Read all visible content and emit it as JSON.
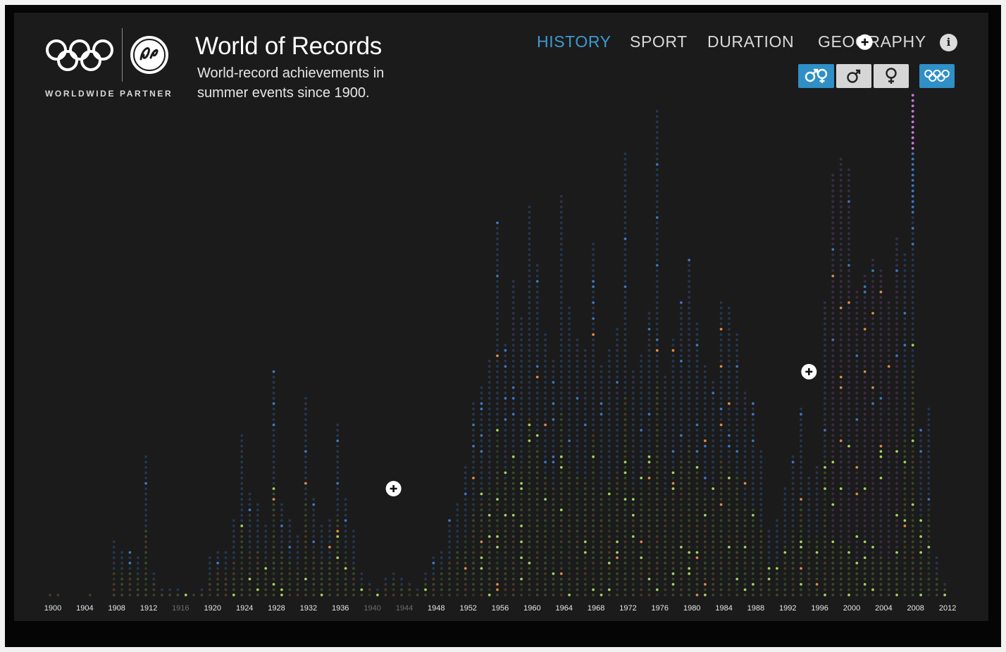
{
  "app": {
    "title": "World of Records",
    "subtitle": "World-record achievements in summer events since 1900.",
    "partner_label": "WORLDWIDE PARTNER"
  },
  "nav": {
    "tabs": [
      {
        "label": "HISTORY",
        "active": true
      },
      {
        "label": "SPORT",
        "active": false
      },
      {
        "label": "DURATION",
        "active": false
      },
      {
        "label": "GEOGRAPHY",
        "active": false
      }
    ],
    "info_label": "i"
  },
  "filters": [
    {
      "name": "both-genders",
      "icon": "male-female-icon",
      "active": true
    },
    {
      "name": "male",
      "icon": "male-icon",
      "active": false
    },
    {
      "name": "female",
      "icon": "female-icon",
      "active": false
    },
    {
      "name": "olympic",
      "icon": "olympic-rings-icon",
      "active": true
    }
  ],
  "colors": {
    "background": "#1b1b1b",
    "accent": "#3d9ad1",
    "active_filter": "#2f8fc6",
    "inactive_filter": "#d6d6d6"
  },
  "chart_data": {
    "type": "scatter",
    "x_axis_type": "year",
    "tick_labels": [
      {
        "year": 1900,
        "label": "1900",
        "dim": false
      },
      {
        "year": 1904,
        "label": "1904",
        "dim": false
      },
      {
        "year": 1908,
        "label": "1908",
        "dim": false
      },
      {
        "year": 1912,
        "label": "1912",
        "dim": false
      },
      {
        "year": 1916,
        "label": "1916",
        "dim": true
      },
      {
        "year": 1920,
        "label": "1920",
        "dim": false
      },
      {
        "year": 1924,
        "label": "1924",
        "dim": false
      },
      {
        "year": 1928,
        "label": "1928",
        "dim": false
      },
      {
        "year": 1932,
        "label": "1932",
        "dim": false
      },
      {
        "year": 1936,
        "label": "1936",
        "dim": false
      },
      {
        "year": 1940,
        "label": "1940",
        "dim": true
      },
      {
        "year": 1944,
        "label": "1944",
        "dim": true
      },
      {
        "year": 1948,
        "label": "1948",
        "dim": false
      },
      {
        "year": 1952,
        "label": "1952",
        "dim": false
      },
      {
        "year": 1956,
        "label": "1956",
        "dim": false
      },
      {
        "year": 1960,
        "label": "1960",
        "dim": false
      },
      {
        "year": 1964,
        "label": "1964",
        "dim": false
      },
      {
        "year": 1968,
        "label": "1968",
        "dim": false
      },
      {
        "year": 1972,
        "label": "1972",
        "dim": false
      },
      {
        "year": 1976,
        "label": "1976",
        "dim": false
      },
      {
        "year": 1980,
        "label": "1980",
        "dim": false
      },
      {
        "year": 1984,
        "label": "1984",
        "dim": false
      },
      {
        "year": 1988,
        "label": "1988",
        "dim": false
      },
      {
        "year": 1992,
        "label": "1992",
        "dim": false
      },
      {
        "year": 1996,
        "label": "1996",
        "dim": false
      },
      {
        "year": 2000,
        "label": "2000",
        "dim": false
      },
      {
        "year": 2004,
        "label": "2004",
        "dim": false
      },
      {
        "year": 2008,
        "label": "2008",
        "dim": false
      },
      {
        "year": 2012,
        "label": "2012",
        "dim": false
      }
    ],
    "record_counts": {
      "years": [
        1900,
        1901,
        1902,
        1903,
        1904,
        1905,
        1906,
        1907,
        1908,
        1909,
        1910,
        1911,
        1912,
        1913,
        1914,
        1915,
        1916,
        1917,
        1918,
        1919,
        1920,
        1921,
        1922,
        1923,
        1924,
        1925,
        1926,
        1927,
        1928,
        1929,
        1930,
        1931,
        1932,
        1933,
        1934,
        1935,
        1936,
        1937,
        1938,
        1939,
        1940,
        1941,
        1942,
        1943,
        1944,
        1945,
        1946,
        1947,
        1948,
        1949,
        1950,
        1951,
        1952,
        1953,
        1954,
        1955,
        1956,
        1957,
        1958,
        1959,
        1960,
        1961,
        1962,
        1963,
        1964,
        1965,
        1966,
        1967,
        1968,
        1969,
        1970,
        1971,
        1972,
        1973,
        1974,
        1975,
        1976,
        1977,
        1978,
        1979,
        1980,
        1981,
        1982,
        1983,
        1984,
        1985,
        1986,
        1987,
        1988,
        1989,
        1990,
        1991,
        1992,
        1993,
        1994,
        1995,
        1996,
        1997,
        1998,
        1999,
        2000,
        2001,
        2002,
        2003,
        2004,
        2005,
        2006,
        2007,
        2008,
        2009,
        2010,
        2011,
        2012
      ],
      "counts": [
        1,
        1,
        0,
        0,
        0,
        1,
        0,
        0,
        11,
        9,
        9,
        8,
        27,
        5,
        2,
        2,
        2,
        1,
        1,
        2,
        8,
        9,
        9,
        15,
        31,
        20,
        18,
        14,
        43,
        18,
        15,
        12,
        38,
        19,
        14,
        15,
        33,
        19,
        13,
        5,
        3,
        2,
        4,
        5,
        4,
        3,
        2,
        5,
        8,
        9,
        15,
        18,
        25,
        37,
        40,
        45,
        71,
        48,
        60,
        53,
        74,
        63,
        50,
        45,
        76,
        55,
        49,
        47,
        67,
        44,
        47,
        51,
        84,
        43,
        46,
        54,
        92,
        42,
        49,
        56,
        64,
        52,
        44,
        41,
        56,
        55,
        50,
        39,
        37,
        28,
        13,
        15,
        21,
        27,
        36,
        23,
        25,
        56,
        80,
        83,
        81,
        58,
        61,
        64,
        62,
        56,
        68,
        65,
        95,
        32,
        36,
        8,
        3
      ]
    },
    "series": [
      {
        "color": "#3b78c4",
        "share": 0.22
      },
      {
        "color": "#a3d35f",
        "share": 0.14
      },
      {
        "color": "#e08a4a",
        "share": 0.03
      },
      {
        "color": "#c978d8",
        "share": 0.03
      }
    ],
    "annotations": [
      {
        "type": "plus",
        "year": 1943,
        "count": 20
      },
      {
        "type": "plus",
        "year": 1995,
        "count": 42
      },
      {
        "type": "plus",
        "year": 2002,
        "count": 104
      }
    ]
  }
}
